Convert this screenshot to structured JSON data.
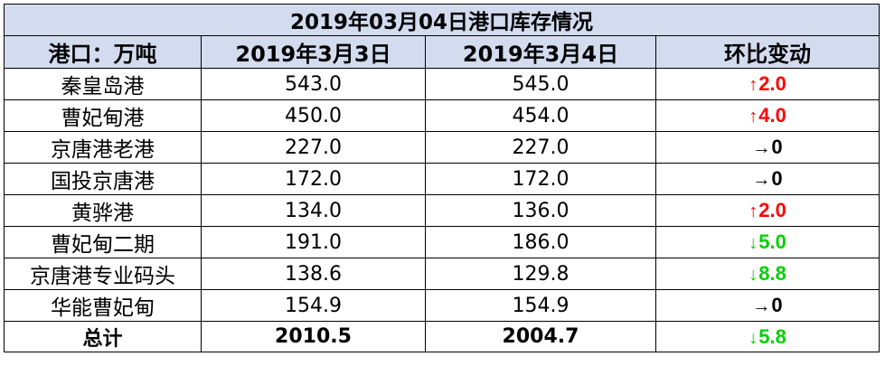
{
  "title": "2019年03月04日港口库存情况",
  "headers": [
    "港口：万吨",
    "2019年3月3日",
    "2019年3月4日",
    "环比变动"
  ],
  "colors": {
    "header_fill": "#d3dbef",
    "up": "#ff0000",
    "down": "#00d000",
    "flat": "#000000",
    "border": "#000000"
  },
  "rows": [
    {
      "port": "秦皇岛港",
      "prev": "543.0",
      "curr": "545.0",
      "dir": "up",
      "arrow": "↑",
      "change": "2.0"
    },
    {
      "port": "曹妃甸港",
      "prev": "450.0",
      "curr": "454.0",
      "dir": "up",
      "arrow": "↑",
      "change": "4.0"
    },
    {
      "port": "京唐港老港",
      "prev": "227.0",
      "curr": "227.0",
      "dir": "flat",
      "arrow": "→",
      "change": "0"
    },
    {
      "port": "国投京唐港",
      "prev": "172.0",
      "curr": "172.0",
      "dir": "flat",
      "arrow": "→",
      "change": "0"
    },
    {
      "port": "黄骅港",
      "prev": "134.0",
      "curr": "136.0",
      "dir": "up",
      "arrow": "↑",
      "change": "2.0"
    },
    {
      "port": "曹妃甸二期",
      "prev": "191.0",
      "curr": "186.0",
      "dir": "down",
      "arrow": "↓",
      "change": "5.0"
    },
    {
      "port": "京唐港专业码头",
      "prev": "138.6",
      "curr": "129.8",
      "dir": "down",
      "arrow": "↓",
      "change": "8.8"
    },
    {
      "port": "华能曹妃甸",
      "prev": "154.9",
      "curr": "154.9",
      "dir": "flat",
      "arrow": "→",
      "change": "0"
    }
  ],
  "total": {
    "label": "总计",
    "prev": "2010.5",
    "curr": "2004.7",
    "dir": "down",
    "arrow": "↓",
    "change": "5.8"
  }
}
